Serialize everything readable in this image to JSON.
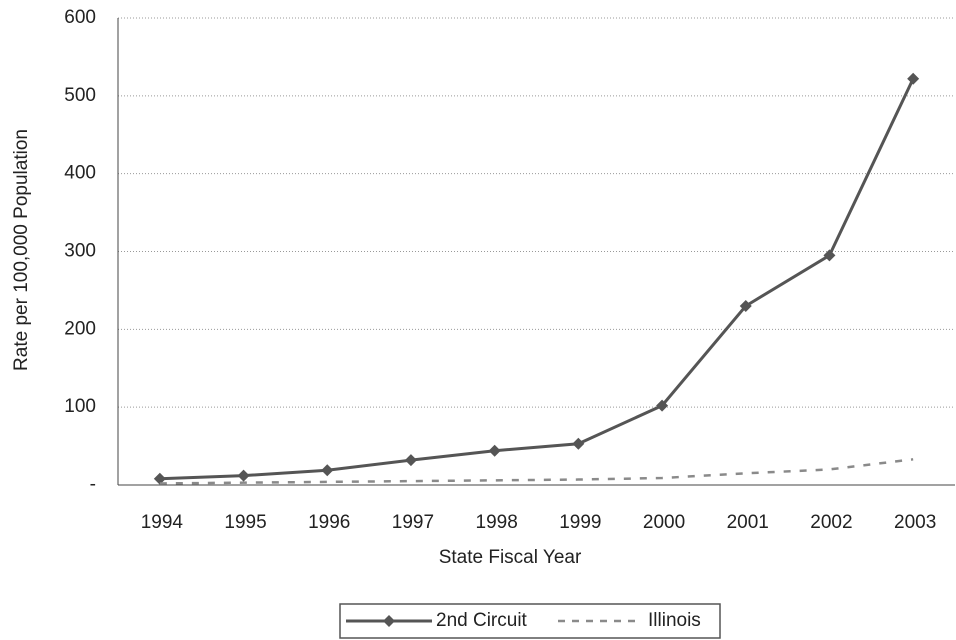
{
  "chart_data": {
    "type": "line",
    "xlabel": "State Fiscal Year",
    "ylabel": "Rate per 100,000 Population",
    "categories": [
      "1994",
      "1995",
      "1996",
      "1997",
      "1998",
      "1999",
      "2000",
      "2001",
      "2002",
      "2003"
    ],
    "series": [
      {
        "name": "2nd Circuit",
        "color": "#555555",
        "values": [
          8,
          12,
          19,
          32,
          44,
          53,
          102,
          230,
          295,
          522
        ]
      },
      {
        "name": "Illinois",
        "color": "#8a8a8a",
        "values": [
          2,
          3,
          4,
          5,
          6,
          7,
          9,
          15,
          20,
          33
        ]
      }
    ],
    "ylim": [
      0,
      600
    ],
    "yticks": [
      {
        "value": 0,
        "label": "-"
      },
      100,
      200,
      300,
      400,
      500,
      600
    ],
    "grid": true
  }
}
